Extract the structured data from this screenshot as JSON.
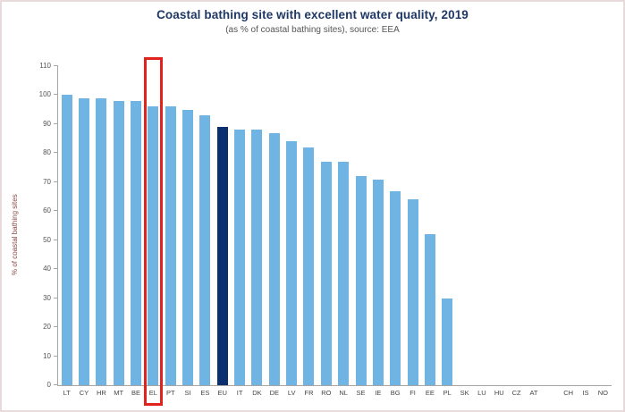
{
  "figure": {
    "background": "#ffffff"
  },
  "colors": {
    "bar": "#6fb4e2",
    "eu_bar": "#0b2f6f",
    "highlight_box": "#e0231c",
    "title_text": "#1f3864",
    "subtitle_text": "#555555",
    "ylabel_text": "#8a4a44",
    "axis_line": "#a6a6a6",
    "tick_text": "#555555",
    "border": "#e9dadc"
  },
  "chart_data": {
    "type": "bar",
    "title": "Coastal bathing site with excellent water quality, 2019",
    "subtitle": "(as % of coastal bathing sites), source: EEA",
    "ylabel": "% of coastal bathing sites",
    "xlabel": "",
    "ylim": [
      0,
      110
    ],
    "ytick_step": 10,
    "grid": false,
    "legend": "none",
    "categories": [
      "LT",
      "CY",
      "HR",
      "MT",
      "BE",
      "EL",
      "PT",
      "SI",
      "ES",
      "EU",
      "IT",
      "DK",
      "DE",
      "LV",
      "FR",
      "RO",
      "NL",
      "SE",
      "IE",
      "BG",
      "FI",
      "EE",
      "PL",
      "SK",
      "LU",
      "HU",
      "CZ",
      "AT",
      "CH",
      "IS",
      "NO"
    ],
    "values": [
      100,
      99,
      99,
      98,
      98,
      96,
      96,
      95,
      93,
      89,
      88,
      88,
      87,
      84,
      82,
      77,
      77,
      72,
      71,
      67,
      64,
      52,
      30,
      0,
      0,
      0,
      0,
      0,
      0,
      0,
      0
    ],
    "emphasized_category": "EU",
    "highlighted_category": "EL",
    "gap_before_category": "CH"
  }
}
